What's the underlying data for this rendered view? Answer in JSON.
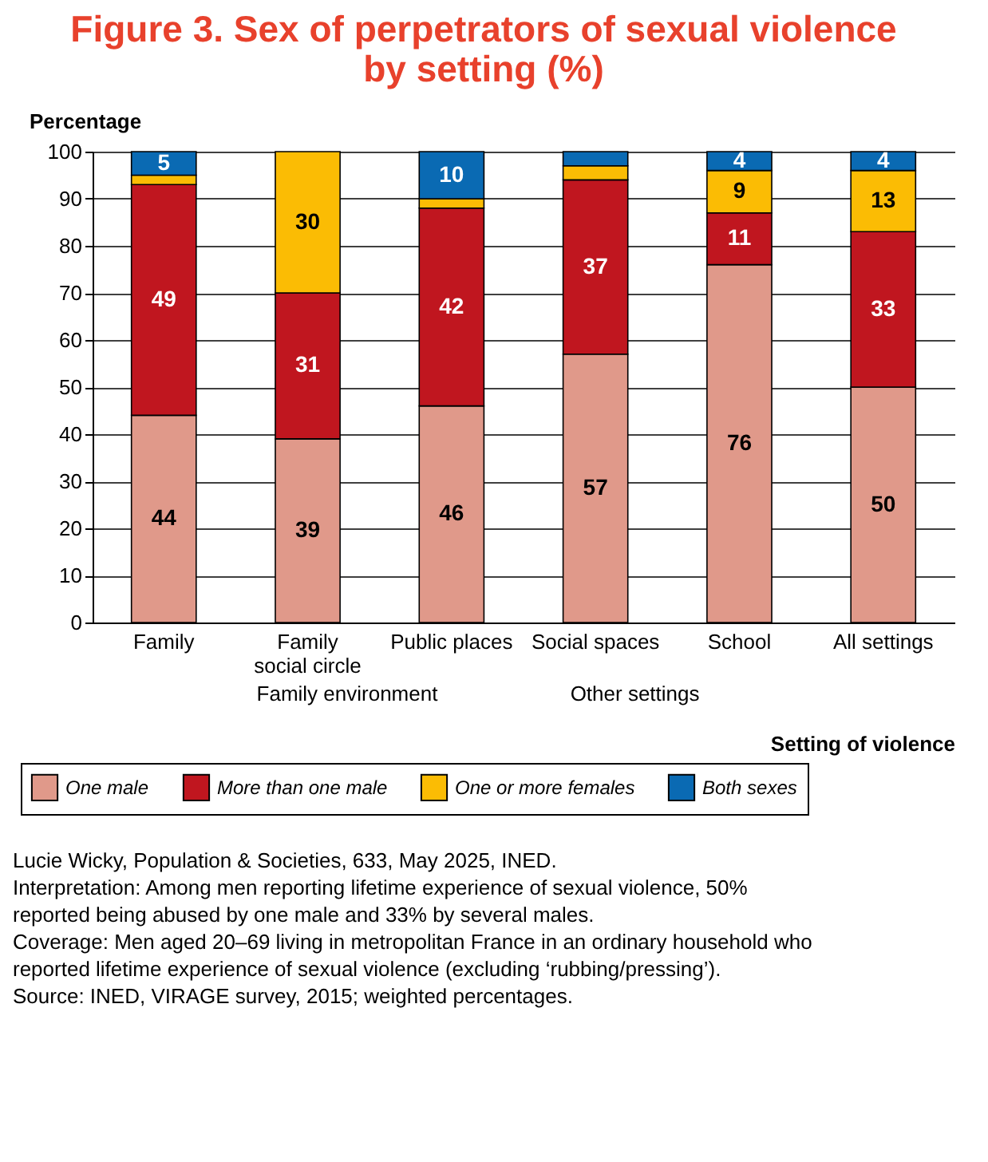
{
  "chart_data": {
    "type": "bar",
    "stacked": true,
    "title": "Figure 3. Sex of perpetrators of sexual violence by setting (%)",
    "ylabel": "Percentage",
    "xlabel": "Setting of violence",
    "categories": [
      "Family",
      "Family\nsocial circle",
      "Public places",
      "Social spaces",
      "School",
      "All settings"
    ],
    "series": [
      {
        "name": "One male",
        "color": "#e0998a",
        "values": [
          44,
          39,
          46,
          57,
          76,
          50
        ],
        "value_labels": [
          "44",
          "39",
          "46",
          "57",
          "76",
          "50"
        ]
      },
      {
        "name": "More than one male",
        "color": "#c0161f",
        "values": [
          49,
          31,
          42,
          37,
          11,
          33
        ],
        "value_labels": [
          "49",
          "31",
          "42",
          "37",
          "11",
          "33"
        ]
      },
      {
        "name": "One or more females",
        "color": "#fbbc04",
        "values": [
          2,
          30,
          2,
          3,
          9,
          13
        ],
        "value_labels": [
          null,
          "30",
          null,
          null,
          "9",
          "13"
        ]
      },
      {
        "name": "Both sexes",
        "color": "#0a6ab3",
        "values": [
          5,
          null,
          10,
          3,
          4,
          4
        ],
        "value_labels": [
          "5",
          null,
          "10",
          null,
          "4",
          "4"
        ]
      }
    ],
    "ylim": [
      0,
      100
    ],
    "yticks": [
      0,
      10,
      20,
      30,
      40,
      50,
      60,
      70,
      80,
      90,
      100
    ],
    "grid": "y",
    "legend": "bottom",
    "annotations": [
      "Family environment",
      "Other settings",
      "Lucie Wicky, Population & Societies, 633, May 2025, INED.",
      "Interpretation: Among men reporting lifetime experience of sexual violence, 50% reported being abused by one male and 33% by several males.",
      "Coverage: Men aged 20–69 living in metropolitan France in an ordinary household who reported lifetime experience of sexual violence (excluding ‘rubbing/pressing’).",
      "Source: INED, VIRAGE survey, 2015; weighted percentages."
    ]
  }
}
